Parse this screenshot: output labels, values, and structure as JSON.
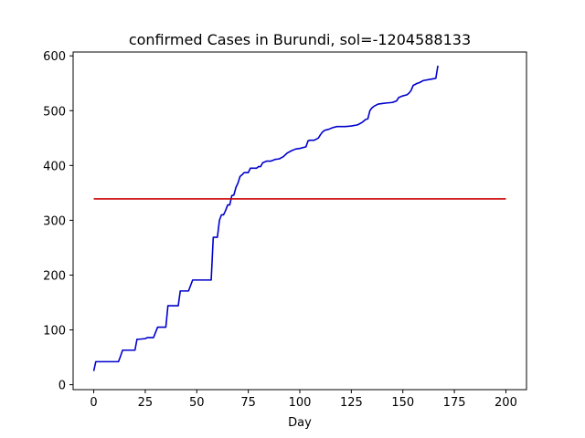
{
  "chart_data": {
    "type": "line",
    "title": "confirmed Cases in Burundi, sol=-1204588133",
    "xlabel": "Day",
    "ylabel": "",
    "xlim": [
      -10,
      210
    ],
    "ylim": [
      -9,
      607
    ],
    "xticks": [
      0,
      25,
      50,
      75,
      100,
      125,
      150,
      175,
      200
    ],
    "yticks": [
      0,
      100,
      200,
      300,
      400,
      500,
      600
    ],
    "grid": false,
    "series": [
      {
        "color": "#0000cc",
        "x": [
          0,
          1,
          3,
          6,
          9,
          12,
          13,
          14,
          16,
          18,
          20,
          21,
          22,
          25,
          26,
          27,
          29,
          31,
          32,
          35,
          36,
          38,
          41,
          42,
          45,
          46,
          48,
          50,
          53,
          57,
          57.5,
          58,
          59,
          60,
          61,
          62,
          63,
          64,
          65,
          66,
          67,
          68,
          69,
          70,
          71,
          72,
          73,
          74,
          75,
          76,
          77,
          78,
          79,
          80,
          81,
          82,
          84,
          86,
          88,
          90,
          92,
          94,
          96,
          98,
          100,
          103,
          104,
          105,
          107,
          109,
          110,
          111,
          112,
          114,
          116,
          118,
          120,
          122,
          125,
          128,
          130,
          132,
          133,
          134,
          135,
          136,
          138,
          140,
          142,
          145,
          147,
          148,
          150,
          152,
          153,
          154,
          155,
          157,
          158,
          160,
          163,
          166,
          167
        ],
        "values": [
          25,
          42,
          42,
          42,
          42,
          42,
          52,
          63,
          63,
          63,
          63,
          83,
          83,
          84,
          86,
          86,
          86,
          105,
          105,
          105,
          144,
          144,
          144,
          171,
          171,
          171,
          191,
          191,
          191,
          191,
          230,
          269,
          269,
          269,
          300,
          310,
          310,
          318,
          328,
          328,
          345,
          346,
          360,
          368,
          380,
          383,
          387,
          387,
          387,
          395,
          395,
          395,
          395,
          398,
          398,
          405,
          408,
          408,
          411,
          412,
          416,
          423,
          427,
          430,
          431,
          434,
          445,
          446,
          446,
          450,
          456,
          461,
          464,
          466,
          469,
          471,
          471,
          471,
          472,
          474,
          478,
          484,
          485,
          500,
          505,
          508,
          512,
          513,
          514,
          515,
          518,
          524,
          527,
          529,
          532,
          537,
          546,
          550,
          551,
          555,
          557,
          559,
          582
        ]
      },
      {
        "color": "#cc0000",
        "x": [
          0,
          200
        ],
        "values": [
          339,
          339
        ]
      }
    ]
  }
}
